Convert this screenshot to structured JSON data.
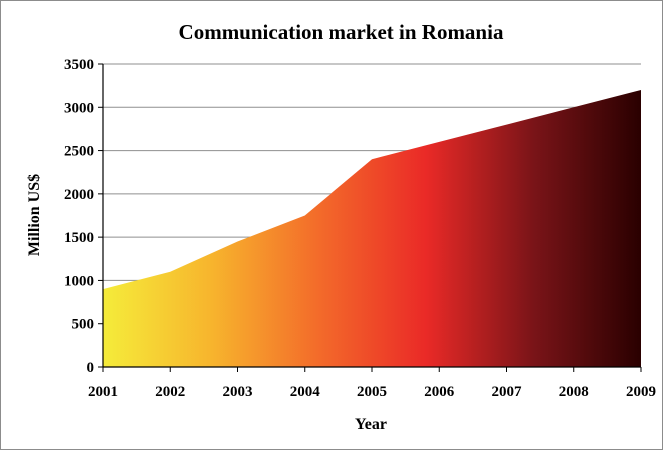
{
  "chart_data": {
    "type": "area",
    "title": "Communication market in Romania",
    "xlabel": "Year",
    "ylabel": "Million US$",
    "x": [
      "2001",
      "2002",
      "2003",
      "2004",
      "2005",
      "2006",
      "2007",
      "2008",
      "2009"
    ],
    "values": [
      900,
      1100,
      1450,
      1750,
      2400,
      2600,
      2800,
      3000,
      3200
    ],
    "ylim": [
      0,
      3500
    ],
    "yticks": [
      0,
      500,
      1000,
      1500,
      2000,
      2500,
      3000,
      3500
    ],
    "grid": true,
    "legend": "none",
    "fill_gradient": [
      "#f5ec3a",
      "#f7b52d",
      "#f36b2a",
      "#ea2a27",
      "#7a1418",
      "#2a0000"
    ]
  }
}
